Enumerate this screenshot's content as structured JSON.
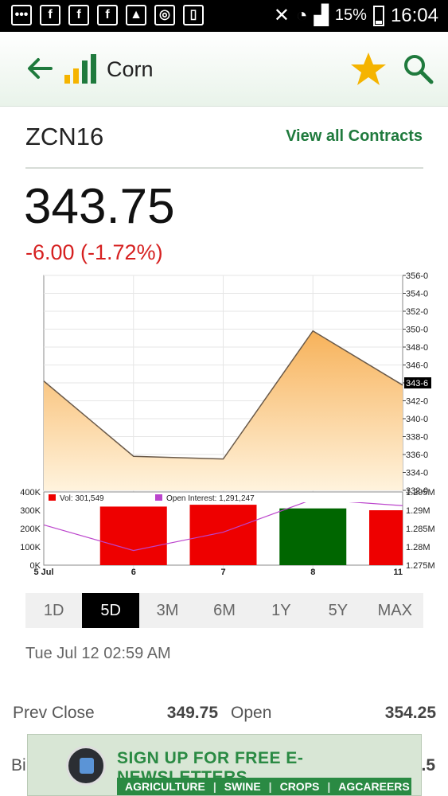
{
  "status_bar": {
    "battery": "15%",
    "time": "16:04"
  },
  "app_bar": {
    "title": "Corn"
  },
  "quote": {
    "symbol": "ZCN16",
    "view_all_label": "View all Contracts",
    "price": "343.75",
    "change": "-6.00 (-1.72%)",
    "change_color": "#d62020",
    "accent_color": "#1f7a3d"
  },
  "chart_data": {
    "type": "area",
    "x": [
      "5 Jul",
      "6",
      "7",
      "8",
      "11"
    ],
    "x_ticks": [
      "5 Jul",
      "6",
      "7",
      "8",
      "11"
    ],
    "price_series": [
      344.2,
      335.8,
      335.5,
      349.8,
      343.75
    ],
    "price_y_ticks": [
      "356-0",
      "354-0",
      "352-0",
      "350-0",
      "348-0",
      "346-0",
      "343-6",
      "342-0",
      "340-0",
      "338-0",
      "336-0",
      "334-0",
      "332-0"
    ],
    "price_ylim": [
      332,
      356
    ],
    "last_label": "343-6",
    "volume_legend": "Vol: 301,549",
    "oi_legend": "Open Interest: 1,291,247",
    "volume_values": [
      0,
      320000,
      330000,
      310000,
      300000
    ],
    "volume_colors": [
      "#ee0000",
      "#ee0000",
      "#ee0000",
      "#006600",
      "#ee0000"
    ],
    "volume_y_ticks": [
      "400K",
      "300K",
      "200K",
      "100K",
      "0K"
    ],
    "volume_ylim": [
      0,
      400000
    ],
    "oi_values": [
      1286000,
      1279000,
      1284000,
      1293000,
      1291247
    ],
    "oi_y_ticks": [
      "1.295M",
      "1.29M",
      "1.285M",
      "1.28M",
      "1.275M"
    ],
    "oi_ylim": [
      1275000,
      1295000
    ],
    "area_color": "#f7b25a",
    "oi_color": "#bb44cc"
  },
  "ranges": {
    "items": [
      "1D",
      "5D",
      "3M",
      "6M",
      "1Y",
      "5Y",
      "MAX"
    ],
    "active": "5D"
  },
  "timestamp": "Tue Jul 12 02:59 AM",
  "stats": {
    "prev_close_label": "Prev Close",
    "prev_close_value": "349.75",
    "open_label": "Open",
    "open_value": "354.25",
    "partial_left": "Bi",
    "partial_right": ".5"
  },
  "ad": {
    "title": "SIGN UP FOR FREE E-NEWSLETTERS",
    "links": [
      "AGRICULTURE",
      "SWINE",
      "CROPS",
      "AGCAREERS"
    ]
  }
}
